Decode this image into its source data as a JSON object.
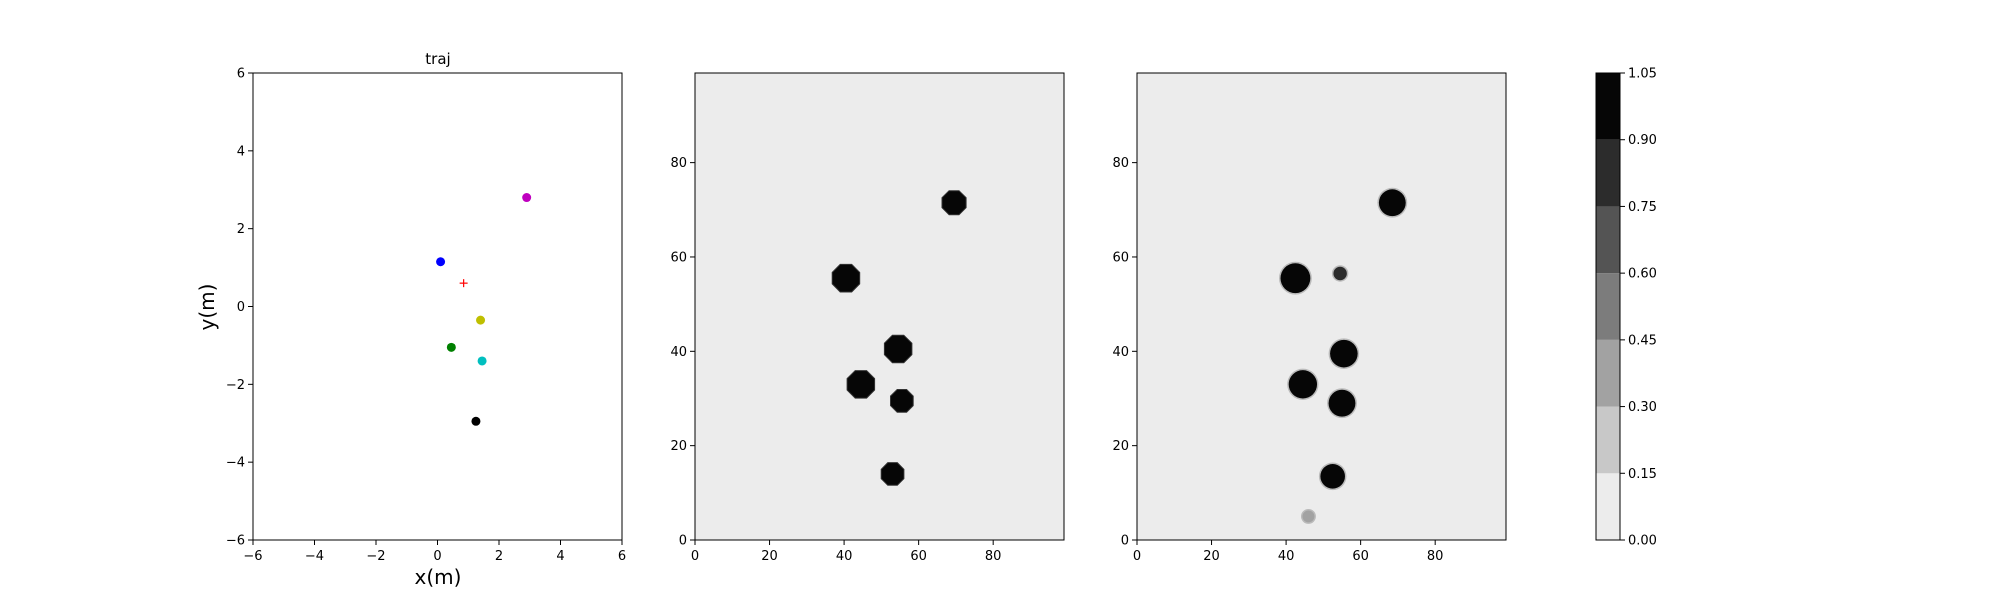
{
  "chart_data": [
    {
      "type": "scatter",
      "title": "traj",
      "xlabel": "x(m)",
      "ylabel": "y(m)",
      "xlim": [
        -6,
        6
      ],
      "ylim": [
        -6,
        6
      ],
      "xticks": [
        -6,
        -4,
        -2,
        0,
        2,
        4,
        6
      ],
      "yticks": [
        -6,
        -4,
        -2,
        0,
        2,
        4,
        6
      ],
      "grid": false,
      "points": [
        {
          "x": 0.1,
          "y": 1.15,
          "color": "#0000ff",
          "marker": "circle"
        },
        {
          "x": 2.9,
          "y": 2.8,
          "color": "#bf00bf",
          "marker": "circle"
        },
        {
          "x": 1.4,
          "y": -0.35,
          "color": "#bfbf00",
          "marker": "circle"
        },
        {
          "x": 0.45,
          "y": -1.05,
          "color": "#008000",
          "marker": "circle"
        },
        {
          "x": 1.45,
          "y": -1.4,
          "color": "#00bfbf",
          "marker": "circle"
        },
        {
          "x": 1.25,
          "y": -2.95,
          "color": "#000000",
          "marker": "circle"
        },
        {
          "x": 0.85,
          "y": 0.6,
          "color": "#ff0000",
          "marker": "plus"
        }
      ]
    },
    {
      "type": "heatmap",
      "xlim": [
        0,
        99
      ],
      "ylim": [
        0,
        99
      ],
      "xticks": [
        0,
        20,
        40,
        60,
        80
      ],
      "yticks": [
        0,
        20,
        40,
        60,
        80
      ],
      "background_value": 0.0,
      "blobs": [
        {
          "x": 69.5,
          "y": 71.5,
          "r": 3.5,
          "value": 1.0,
          "shape": "octagon"
        },
        {
          "x": 40.5,
          "y": 55.5,
          "r": 4.0,
          "value": 1.0,
          "shape": "octagon"
        },
        {
          "x": 54.5,
          "y": 40.5,
          "r": 4.0,
          "value": 1.0,
          "shape": "octagon"
        },
        {
          "x": 44.5,
          "y": 33.0,
          "r": 4.0,
          "value": 1.0,
          "shape": "octagon"
        },
        {
          "x": 55.5,
          "y": 29.5,
          "r": 3.3,
          "value": 1.0,
          "shape": "octagon"
        },
        {
          "x": 53.0,
          "y": 14.0,
          "r": 3.3,
          "value": 1.0,
          "shape": "octagon"
        }
      ]
    },
    {
      "type": "heatmap",
      "xlim": [
        0,
        99
      ],
      "ylim": [
        0,
        99
      ],
      "xticks": [
        0,
        20,
        40,
        60,
        80
      ],
      "yticks": [
        0,
        20,
        40,
        60,
        80
      ],
      "background_value": 0.0,
      "blobs": [
        {
          "x": 68.5,
          "y": 71.5,
          "r": 3.6,
          "value": 1.0,
          "shape": "circle"
        },
        {
          "x": 42.5,
          "y": 55.5,
          "r": 4.0,
          "value": 1.0,
          "shape": "circle"
        },
        {
          "x": 54.5,
          "y": 56.5,
          "r": 1.8,
          "value": 0.85,
          "shape": "circle"
        },
        {
          "x": 55.5,
          "y": 39.5,
          "r": 3.7,
          "value": 1.0,
          "shape": "circle"
        },
        {
          "x": 44.5,
          "y": 33.0,
          "r": 3.8,
          "value": 1.0,
          "shape": "circle"
        },
        {
          "x": 55.0,
          "y": 29.0,
          "r": 3.6,
          "value": 1.0,
          "shape": "circle"
        },
        {
          "x": 52.5,
          "y": 13.5,
          "r": 3.3,
          "value": 1.0,
          "shape": "circle"
        },
        {
          "x": 46.0,
          "y": 5.0,
          "r": 1.6,
          "value": 0.4,
          "shape": "circle"
        }
      ]
    },
    {
      "type": "colorbar",
      "levels": [
        "0.00",
        "0.15",
        "0.30",
        "0.45",
        "0.60",
        "0.75",
        "0.90",
        "1.05"
      ],
      "colors": [
        "#ececec",
        "#c8c8c8",
        "#a2a2a2",
        "#7c7c7c",
        "#545454",
        "#2c2c2c",
        "#060606"
      ]
    }
  ]
}
